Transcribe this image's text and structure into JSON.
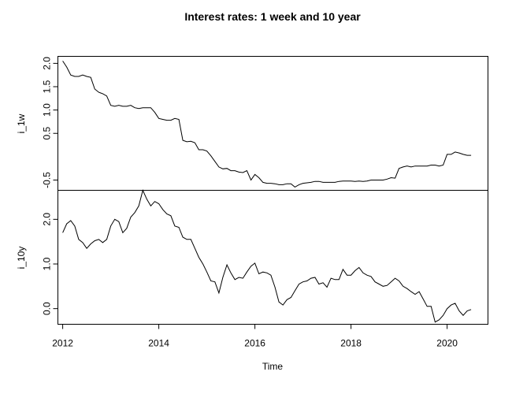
{
  "chart_data": {
    "type": "line",
    "title": "Interest rates: 1 week and 10 year",
    "xlabel": "Time",
    "xlim": [
      2011.9,
      2020.85
    ],
    "xticks": [
      2012,
      2014,
      2016,
      2018,
      2020
    ],
    "grid": false,
    "panels": [
      {
        "name": "i_1w",
        "ylabel": "i_1w",
        "ylim": [
          -0.72,
          2.15
        ],
        "yticks": [
          -0.5,
          0.5,
          1.0,
          1.5,
          2.0
        ],
        "ytick_labels": [
          "-0.5",
          "0.5",
          "1.0",
          "1.5",
          "2.0"
        ],
        "x": [
          2012.0,
          2012.083,
          2012.167,
          2012.25,
          2012.333,
          2012.417,
          2012.5,
          2012.583,
          2012.667,
          2012.75,
          2012.833,
          2012.917,
          2013.0,
          2013.083,
          2013.167,
          2013.25,
          2013.333,
          2013.417,
          2013.5,
          2013.583,
          2013.667,
          2013.75,
          2013.833,
          2013.917,
          2014.0,
          2014.083,
          2014.167,
          2014.25,
          2014.333,
          2014.417,
          2014.5,
          2014.583,
          2014.667,
          2014.75,
          2014.833,
          2014.917,
          2015.0,
          2015.083,
          2015.167,
          2015.25,
          2015.333,
          2015.417,
          2015.5,
          2015.583,
          2015.667,
          2015.75,
          2015.833,
          2015.917,
          2016.0,
          2016.083,
          2016.167,
          2016.25,
          2016.333,
          2016.417,
          2016.5,
          2016.583,
          2016.667,
          2016.75,
          2016.833,
          2016.917,
          2017.0,
          2017.083,
          2017.167,
          2017.25,
          2017.333,
          2017.417,
          2017.5,
          2017.583,
          2017.667,
          2017.75,
          2017.833,
          2017.917,
          2018.0,
          2018.083,
          2018.167,
          2018.25,
          2018.333,
          2018.417,
          2018.5,
          2018.583,
          2018.667,
          2018.75,
          2018.833,
          2018.917,
          2019.0,
          2019.083,
          2019.167,
          2019.25,
          2019.333,
          2019.417,
          2019.5,
          2019.583,
          2019.667,
          2019.75,
          2019.833,
          2019.917,
          2020.0,
          2020.083,
          2020.167,
          2020.25,
          2020.333,
          2020.417,
          2020.5
        ],
        "values": [
          2.05,
          1.92,
          1.75,
          1.72,
          1.72,
          1.75,
          1.72,
          1.7,
          1.45,
          1.38,
          1.35,
          1.3,
          1.1,
          1.08,
          1.1,
          1.08,
          1.08,
          1.1,
          1.05,
          1.03,
          1.05,
          1.05,
          1.05,
          0.95,
          0.82,
          0.8,
          0.78,
          0.78,
          0.82,
          0.8,
          0.35,
          0.32,
          0.33,
          0.3,
          0.15,
          0.15,
          0.12,
          0.02,
          -0.1,
          -0.22,
          -0.26,
          -0.25,
          -0.3,
          -0.3,
          -0.33,
          -0.34,
          -0.3,
          -0.5,
          -0.38,
          -0.45,
          -0.55,
          -0.57,
          -0.57,
          -0.58,
          -0.6,
          -0.6,
          -0.58,
          -0.58,
          -0.65,
          -0.6,
          -0.57,
          -0.56,
          -0.55,
          -0.53,
          -0.53,
          -0.55,
          -0.55,
          -0.55,
          -0.55,
          -0.53,
          -0.52,
          -0.52,
          -0.52,
          -0.53,
          -0.52,
          -0.53,
          -0.52,
          -0.5,
          -0.5,
          -0.5,
          -0.5,
          -0.48,
          -0.45,
          -0.46,
          -0.25,
          -0.22,
          -0.2,
          -0.22,
          -0.2,
          -0.2,
          -0.2,
          -0.2,
          -0.18,
          -0.18,
          -0.2,
          -0.18,
          0.05,
          0.05,
          0.1,
          0.08,
          0.05,
          0.03,
          0.03
        ]
      },
      {
        "name": "i_10y",
        "ylabel": "i_10y",
        "ylim": [
          -0.35,
          2.65
        ],
        "yticks": [
          0.0,
          1.0,
          2.0
        ],
        "ytick_labels": [
          "0.0",
          "1.0",
          "2.0"
        ],
        "x": [
          2012.0,
          2012.083,
          2012.167,
          2012.25,
          2012.333,
          2012.417,
          2012.5,
          2012.583,
          2012.667,
          2012.75,
          2012.833,
          2012.917,
          2013.0,
          2013.083,
          2013.167,
          2013.25,
          2013.333,
          2013.417,
          2013.5,
          2013.583,
          2013.667,
          2013.75,
          2013.833,
          2013.917,
          2014.0,
          2014.083,
          2014.167,
          2014.25,
          2014.333,
          2014.417,
          2014.5,
          2014.583,
          2014.667,
          2014.75,
          2014.833,
          2014.917,
          2015.0,
          2015.083,
          2015.167,
          2015.25,
          2015.333,
          2015.417,
          2015.5,
          2015.583,
          2015.667,
          2015.75,
          2015.833,
          2015.917,
          2016.0,
          2016.083,
          2016.167,
          2016.25,
          2016.333,
          2016.417,
          2016.5,
          2016.583,
          2016.667,
          2016.75,
          2016.833,
          2016.917,
          2017.0,
          2017.083,
          2017.167,
          2017.25,
          2017.333,
          2017.417,
          2017.5,
          2017.583,
          2017.667,
          2017.75,
          2017.833,
          2017.917,
          2018.0,
          2018.083,
          2018.167,
          2018.25,
          2018.333,
          2018.417,
          2018.5,
          2018.583,
          2018.667,
          2018.75,
          2018.833,
          2018.917,
          2019.0,
          2019.083,
          2019.167,
          2019.25,
          2019.333,
          2019.417,
          2019.5,
          2019.583,
          2019.667,
          2019.75,
          2019.833,
          2019.917,
          2020.0,
          2020.083,
          2020.167,
          2020.25,
          2020.333,
          2020.417,
          2020.5
        ],
        "values": [
          1.7,
          1.9,
          1.97,
          1.85,
          1.55,
          1.48,
          1.35,
          1.45,
          1.52,
          1.55,
          1.48,
          1.55,
          1.85,
          2.0,
          1.95,
          1.7,
          1.8,
          2.05,
          2.15,
          2.3,
          2.65,
          2.45,
          2.3,
          2.4,
          2.35,
          2.22,
          2.12,
          2.08,
          1.85,
          1.82,
          1.6,
          1.55,
          1.55,
          1.35,
          1.15,
          1.0,
          0.82,
          0.62,
          0.6,
          0.35,
          0.7,
          0.98,
          0.8,
          0.65,
          0.7,
          0.68,
          0.82,
          0.95,
          1.02,
          0.78,
          0.82,
          0.8,
          0.75,
          0.48,
          0.15,
          0.08,
          0.2,
          0.25,
          0.4,
          0.55,
          0.6,
          0.62,
          0.68,
          0.7,
          0.55,
          0.58,
          0.48,
          0.68,
          0.65,
          0.65,
          0.88,
          0.75,
          0.75,
          0.85,
          0.92,
          0.8,
          0.75,
          0.72,
          0.6,
          0.55,
          0.5,
          0.52,
          0.6,
          0.68,
          0.62,
          0.5,
          0.45,
          0.38,
          0.32,
          0.38,
          0.22,
          0.05,
          0.05,
          -0.3,
          -0.25,
          -0.15,
          0.0,
          0.08,
          0.12,
          -0.05,
          -0.15,
          -0.05,
          -0.02
        ]
      }
    ]
  }
}
